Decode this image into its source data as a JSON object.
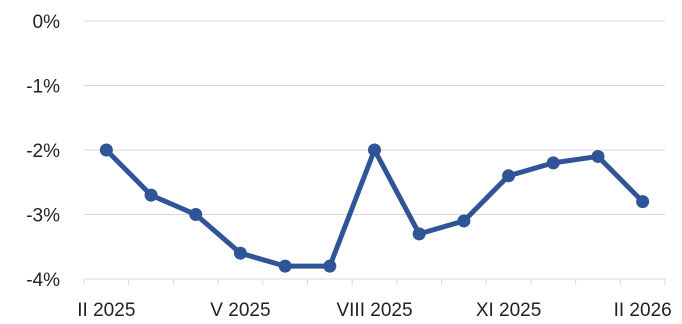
{
  "chart_data": {
    "type": "line",
    "title": "",
    "xlabel": "",
    "ylabel": "",
    "ylim": [
      -4,
      0
    ],
    "y_ticks": [
      0,
      -1,
      -2,
      -3,
      -4
    ],
    "y_tick_labels": [
      "0%",
      "-1%",
      "-2%",
      "-3%",
      "-4%"
    ],
    "x": [
      "II 2025",
      "III 2025",
      "IV 2025",
      "V 2025",
      "VI 2025",
      "VII 2025",
      "VIII 2025",
      "IX 2025",
      "X 2025",
      "XI 2025",
      "XII 2025",
      "I 2026",
      "II 2026"
    ],
    "x_tick_labels": [
      {
        "index": 0,
        "label": "II 2025"
      },
      {
        "index": 3,
        "label": "V 2025"
      },
      {
        "index": 6,
        "label": "VIII 2025"
      },
      {
        "index": 9,
        "label": "XI 2025"
      },
      {
        "index": 12,
        "label": "II 2026"
      }
    ],
    "series": [
      {
        "values": [
          -2.0,
          -2.7,
          -3.0,
          -3.6,
          -3.8,
          -3.8,
          -2.0,
          -3.3,
          -3.1,
          -2.4,
          -2.2,
          -2.1,
          -2.8
        ],
        "color": "#2f5597"
      }
    ],
    "grid": true,
    "legend": "none"
  }
}
